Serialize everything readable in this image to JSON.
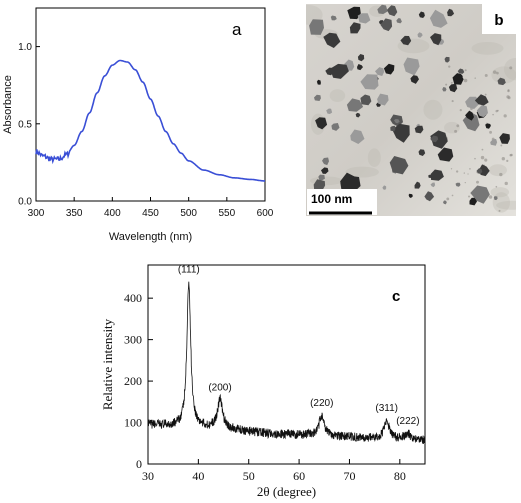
{
  "chart_data": [
    {
      "panel": "a",
      "type": "line",
      "xlabel": "Wavelength (nm)",
      "ylabel": "Absorbance",
      "xlim": [
        300,
        600
      ],
      "ylim": [
        0.0,
        1.25
      ],
      "xticks": [
        300,
        350,
        400,
        450,
        500,
        550,
        600
      ],
      "yticks": [
        0.0,
        0.5,
        1.0
      ],
      "ytick_labels": [
        "0.0",
        "0.5",
        "1.0"
      ],
      "line_color": "#3a4fd6",
      "series": [
        {
          "x": [
            300,
            310,
            320,
            330,
            340,
            350,
            360,
            370,
            380,
            390,
            400,
            410,
            420,
            430,
            440,
            450,
            460,
            470,
            480,
            490,
            500,
            520,
            540,
            560,
            580,
            600
          ],
          "values": [
            0.32,
            0.29,
            0.27,
            0.27,
            0.3,
            0.36,
            0.45,
            0.57,
            0.7,
            0.81,
            0.88,
            0.91,
            0.9,
            0.85,
            0.77,
            0.66,
            0.55,
            0.45,
            0.37,
            0.31,
            0.26,
            0.2,
            0.17,
            0.15,
            0.14,
            0.13
          ]
        }
      ]
    },
    {
      "panel": "b",
      "type": "image",
      "scale_bar_label": "100 nm"
    },
    {
      "panel": "c",
      "type": "line",
      "xlabel": "2θ (degree)",
      "ylabel": "Relative intensity",
      "xlim": [
        30,
        85
      ],
      "ylim": [
        0,
        480
      ],
      "xticks": [
        30,
        40,
        50,
        60,
        70,
        80
      ],
      "yticks": [
        0,
        100,
        200,
        300,
        400
      ],
      "line_color": "#111111",
      "peaks": [
        {
          "x": 38.1,
          "height": 350,
          "width": 0.45,
          "label": "(111)"
        },
        {
          "x": 44.3,
          "height": 70,
          "width": 0.6,
          "label": "(200)"
        },
        {
          "x": 64.5,
          "height": 50,
          "width": 0.6,
          "label": "(220)"
        },
        {
          "x": 77.4,
          "height": 45,
          "width": 0.6,
          "label": "(311)"
        },
        {
          "x": 81.6,
          "height": 15,
          "width": 0.6,
          "label": "(222)"
        }
      ],
      "baseline": [
        {
          "x": 30,
          "y": 95
        },
        {
          "x": 35,
          "y": 92
        },
        {
          "x": 45,
          "y": 85
        },
        {
          "x": 55,
          "y": 72
        },
        {
          "x": 65,
          "y": 68
        },
        {
          "x": 75,
          "y": 62
        },
        {
          "x": 85,
          "y": 58
        }
      ]
    }
  ],
  "labels": {
    "panel_a": "a",
    "panel_b": "b",
    "panel_c": "c"
  }
}
